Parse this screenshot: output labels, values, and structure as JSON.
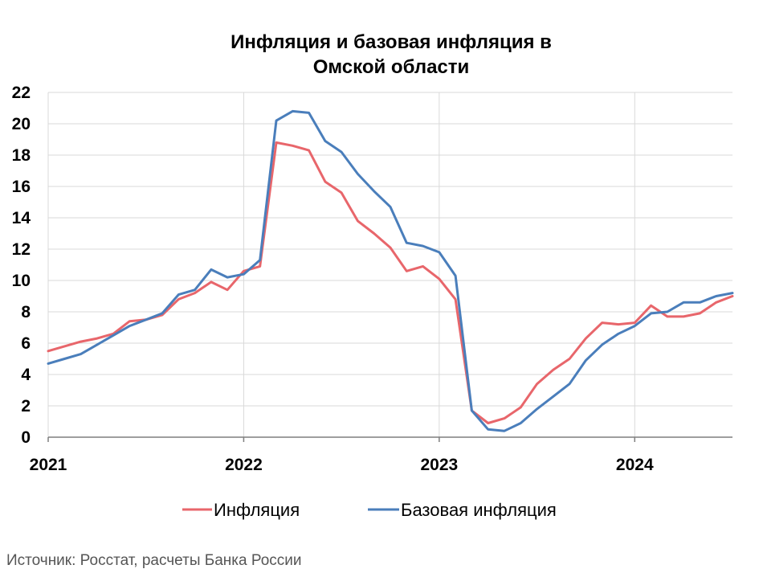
{
  "chart_data": {
    "type": "line",
    "title": [
      "Инфляция и базовая инфляция в",
      "Омской области"
    ],
    "xlabel": "",
    "ylabel": "",
    "xlim": [
      "2021-01",
      "2024-07"
    ],
    "ylim": [
      0,
      22
    ],
    "yticks": [
      "0",
      "2",
      "4",
      "6",
      "8",
      "10",
      "12",
      "14",
      "16",
      "18",
      "20",
      "22"
    ],
    "xticks": [
      "2021",
      "2022",
      "2023",
      "2024"
    ],
    "grid": true,
    "legend_position": "bottom",
    "x": [
      "2021-01",
      "2021-02",
      "2021-03",
      "2021-04",
      "2021-05",
      "2021-06",
      "2021-07",
      "2021-08",
      "2021-09",
      "2021-10",
      "2021-11",
      "2021-12",
      "2022-01",
      "2022-02",
      "2022-03",
      "2022-04",
      "2022-05",
      "2022-06",
      "2022-07",
      "2022-08",
      "2022-09",
      "2022-10",
      "2022-11",
      "2022-12",
      "2023-01",
      "2023-02",
      "2023-03",
      "2023-04",
      "2023-05",
      "2023-06",
      "2023-07",
      "2023-08",
      "2023-09",
      "2023-10",
      "2023-11",
      "2023-12",
      "2024-01",
      "2024-02",
      "2024-03",
      "2024-04",
      "2024-05",
      "2024-06",
      "2024-07"
    ],
    "series": [
      {
        "name": "Инфляция",
        "color": "#e8666b",
        "values": [
          5.5,
          5.8,
          6.1,
          6.3,
          6.6,
          7.4,
          7.5,
          7.8,
          8.8,
          9.2,
          9.9,
          9.4,
          10.6,
          10.9,
          18.8,
          18.6,
          18.3,
          16.3,
          15.6,
          13.8,
          13.0,
          12.1,
          10.6,
          10.9,
          10.1,
          8.8,
          1.7,
          0.9,
          1.2,
          1.9,
          3.4,
          4.3,
          5.0,
          6.3,
          7.3,
          7.2,
          7.3,
          8.4,
          7.7,
          7.7,
          7.9,
          8.6,
          9.0
        ]
      },
      {
        "name": "Базовая инфляция",
        "color": "#4a7ebb",
        "values": [
          4.7,
          5.0,
          5.3,
          5.9,
          6.5,
          7.1,
          7.5,
          7.9,
          9.1,
          9.4,
          10.7,
          10.2,
          10.4,
          11.3,
          20.2,
          20.8,
          20.7,
          18.9,
          18.2,
          16.8,
          15.7,
          14.7,
          12.4,
          12.2,
          11.8,
          10.3,
          1.7,
          0.5,
          0.4,
          0.9,
          1.8,
          2.6,
          3.4,
          4.9,
          5.9,
          6.6,
          7.1,
          7.9,
          8.0,
          8.6,
          8.6,
          9.0,
          9.2
        ]
      }
    ],
    "source": "Источник: Росстат, расчеты Банка России"
  }
}
